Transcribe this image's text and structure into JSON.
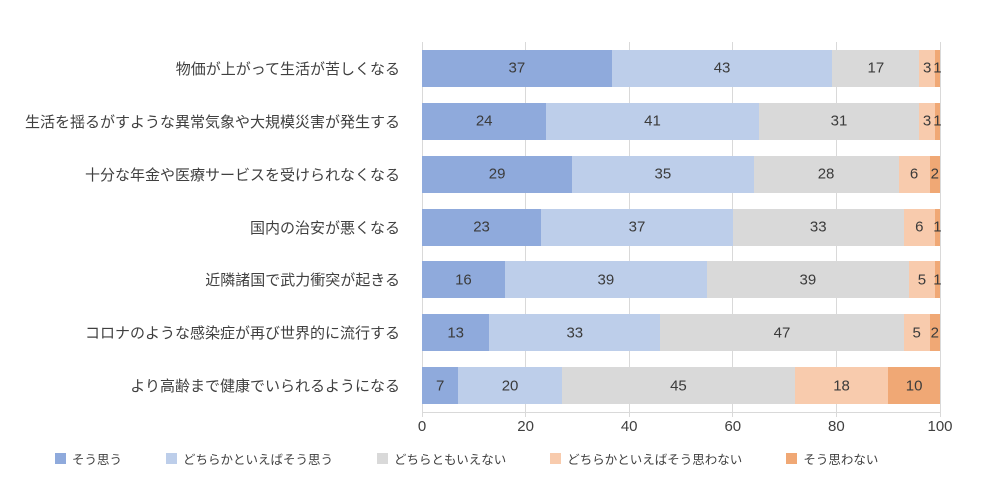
{
  "chart_data": {
    "type": "bar",
    "orientation": "horizontal",
    "stacked": true,
    "stacked_100_percent": true,
    "title": "",
    "xlabel": "",
    "ylabel": "",
    "xlim": [
      0,
      100
    ],
    "x_ticks": [
      "0",
      "20",
      "40",
      "60",
      "80",
      "100"
    ],
    "grid": true,
    "legend_position": "bottom",
    "categories": [
      "物価が上がって生活が苦しくなる",
      "生活を揺るがすような異常気象や大規模災害が発生する",
      "十分な年金や医療サービスを受けられなくなる",
      "国内の治安が悪くなる",
      "近隣諸国で武力衝突が起きる",
      "コロナのような感染症が再び世界的に流行する",
      "より高齢まで健康でいられるようになる"
    ],
    "series": [
      {
        "name": "そう思う",
        "color": "#8FAADC",
        "values": [
          37,
          24,
          29,
          23,
          16,
          13,
          7
        ]
      },
      {
        "name": "どちらかといえばそう思う",
        "color": "#BDCEEA",
        "values": [
          43,
          41,
          35,
          37,
          39,
          33,
          20
        ]
      },
      {
        "name": "どちらともいえない",
        "color": "#D9D9D9",
        "values": [
          17,
          31,
          28,
          33,
          39,
          47,
          45
        ]
      },
      {
        "name": "どちらかといえばそう思わない",
        "color": "#F8CBAD",
        "values": [
          3,
          3,
          6,
          6,
          5,
          5,
          18
        ]
      },
      {
        "name": "そう思わない",
        "color": "#F0A875",
        "values": [
          1,
          1,
          2,
          1,
          1,
          2,
          10
        ]
      }
    ],
    "gridline_color": "#D9D9D9",
    "value_label_color": "#3B3B3B"
  }
}
